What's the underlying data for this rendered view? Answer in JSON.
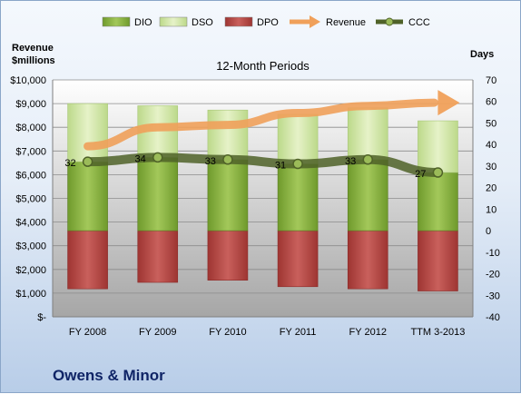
{
  "chart_data": {
    "type": "bar",
    "title": "12-Month Periods",
    "left_axis_label_line1": "Revenue",
    "left_axis_label_line2": "$millions",
    "right_axis_label": "Days",
    "categories": [
      "FY 2008",
      "FY 2009",
      "FY 2010",
      "FY 2011",
      "FY 2012",
      "TTM 3-2013"
    ],
    "left_ylim": [
      0,
      10000
    ],
    "left_ticks": [
      "$-",
      "$1,000",
      "$2,000",
      "$3,000",
      "$4,000",
      "$5,000",
      "$6,000",
      "$7,000",
      "$8,000",
      "$9,000",
      "$10,000"
    ],
    "right_ylim": [
      -40,
      70
    ],
    "right_ticks": [
      "-40",
      "-30",
      "-20",
      "-10",
      "0",
      "10",
      "20",
      "30",
      "40",
      "50",
      "60",
      "70"
    ],
    "grid": "horizontal",
    "legend_position": "top",
    "legend": [
      {
        "name": "DIO",
        "type": "bar",
        "color": "#86b03a"
      },
      {
        "name": "DSO",
        "type": "bar",
        "color": "#d5e8a6"
      },
      {
        "name": "DPO",
        "type": "bar",
        "color": "#c0504d"
      },
      {
        "name": "Revenue",
        "type": "arrow",
        "color": "#f0a05a"
      },
      {
        "name": "CCC",
        "type": "line",
        "color": "#4f6228"
      }
    ],
    "series": [
      {
        "name": "DIO",
        "axis": "right",
        "values": [
          32,
          34,
          33,
          31,
          33,
          27
        ]
      },
      {
        "name": "DSO",
        "axis": "right",
        "values": [
          27,
          24,
          23,
          23,
          24,
          24
        ]
      },
      {
        "name": "DPO",
        "axis": "right",
        "values": [
          -27,
          -24,
          -23,
          -26,
          -27,
          -28
        ]
      },
      {
        "name": "Revenue",
        "axis": "left",
        "values": [
          7200,
          8000,
          8100,
          8600,
          8900,
          9000
        ]
      },
      {
        "name": "CCC",
        "axis": "right",
        "values": [
          32,
          34,
          33,
          31,
          33,
          27
        ]
      }
    ],
    "ccc_labels": [
      "32",
      "34",
      "33",
      "31",
      "33",
      "27"
    ]
  },
  "footer": {
    "company": "Owens & Minor"
  }
}
